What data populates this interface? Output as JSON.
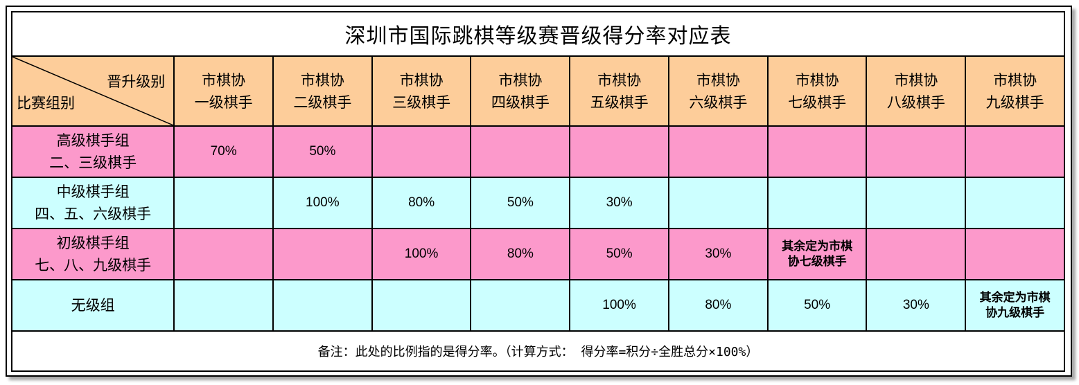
{
  "title": "深圳市国际跳棋等级赛晋级得分率对应表",
  "corner": {
    "top_right": "晋升级别",
    "bottom_left": "比赛组别"
  },
  "columns": [
    {
      "l1": "市棋协",
      "l2": "一级棋手"
    },
    {
      "l1": "市棋协",
      "l2": "二级棋手"
    },
    {
      "l1": "市棋协",
      "l2": "三级棋手"
    },
    {
      "l1": "市棋协",
      "l2": "四级棋手"
    },
    {
      "l1": "市棋协",
      "l2": "五级棋手"
    },
    {
      "l1": "市棋协",
      "l2": "六级棋手"
    },
    {
      "l1": "市棋协",
      "l2": "七级棋手"
    },
    {
      "l1": "市棋协",
      "l2": "八级棋手"
    },
    {
      "l1": "市棋协",
      "l2": "九级棋手"
    }
  ],
  "rows": [
    {
      "group_l1": "高级棋手组",
      "group_l2": "二、三级棋手",
      "cells": [
        "70%",
        "50%",
        "",
        "",
        "",
        "",
        "",
        "",
        ""
      ]
    },
    {
      "group_l1": "中级棋手组",
      "group_l2": "四、五、六级棋手",
      "cells": [
        "",
        "100%",
        "80%",
        "50%",
        "30%",
        "",
        "",
        "",
        ""
      ]
    },
    {
      "group_l1": "初级棋手组",
      "group_l2": "七、八、九级棋手",
      "cells": [
        "",
        "",
        "100%",
        "80%",
        "50%",
        "30%",
        "其余定为市棋协七级棋手",
        "",
        ""
      ]
    },
    {
      "group_l1": "无级组",
      "group_l2": "",
      "cells": [
        "",
        "",
        "",
        "",
        "100%",
        "80%",
        "50%",
        "30%",
        "其余定为市棋协九级棋手"
      ]
    }
  ],
  "note_wraps": {
    "r3c7": [
      "其余定为市棋",
      "协七级棋手"
    ],
    "r4c9": [
      "其余定为市棋",
      "协九级棋手"
    ]
  },
  "footer": "备注：此处的比例指的是得分率。（计算方式：  得分率=积分÷全胜总分×100%）"
}
